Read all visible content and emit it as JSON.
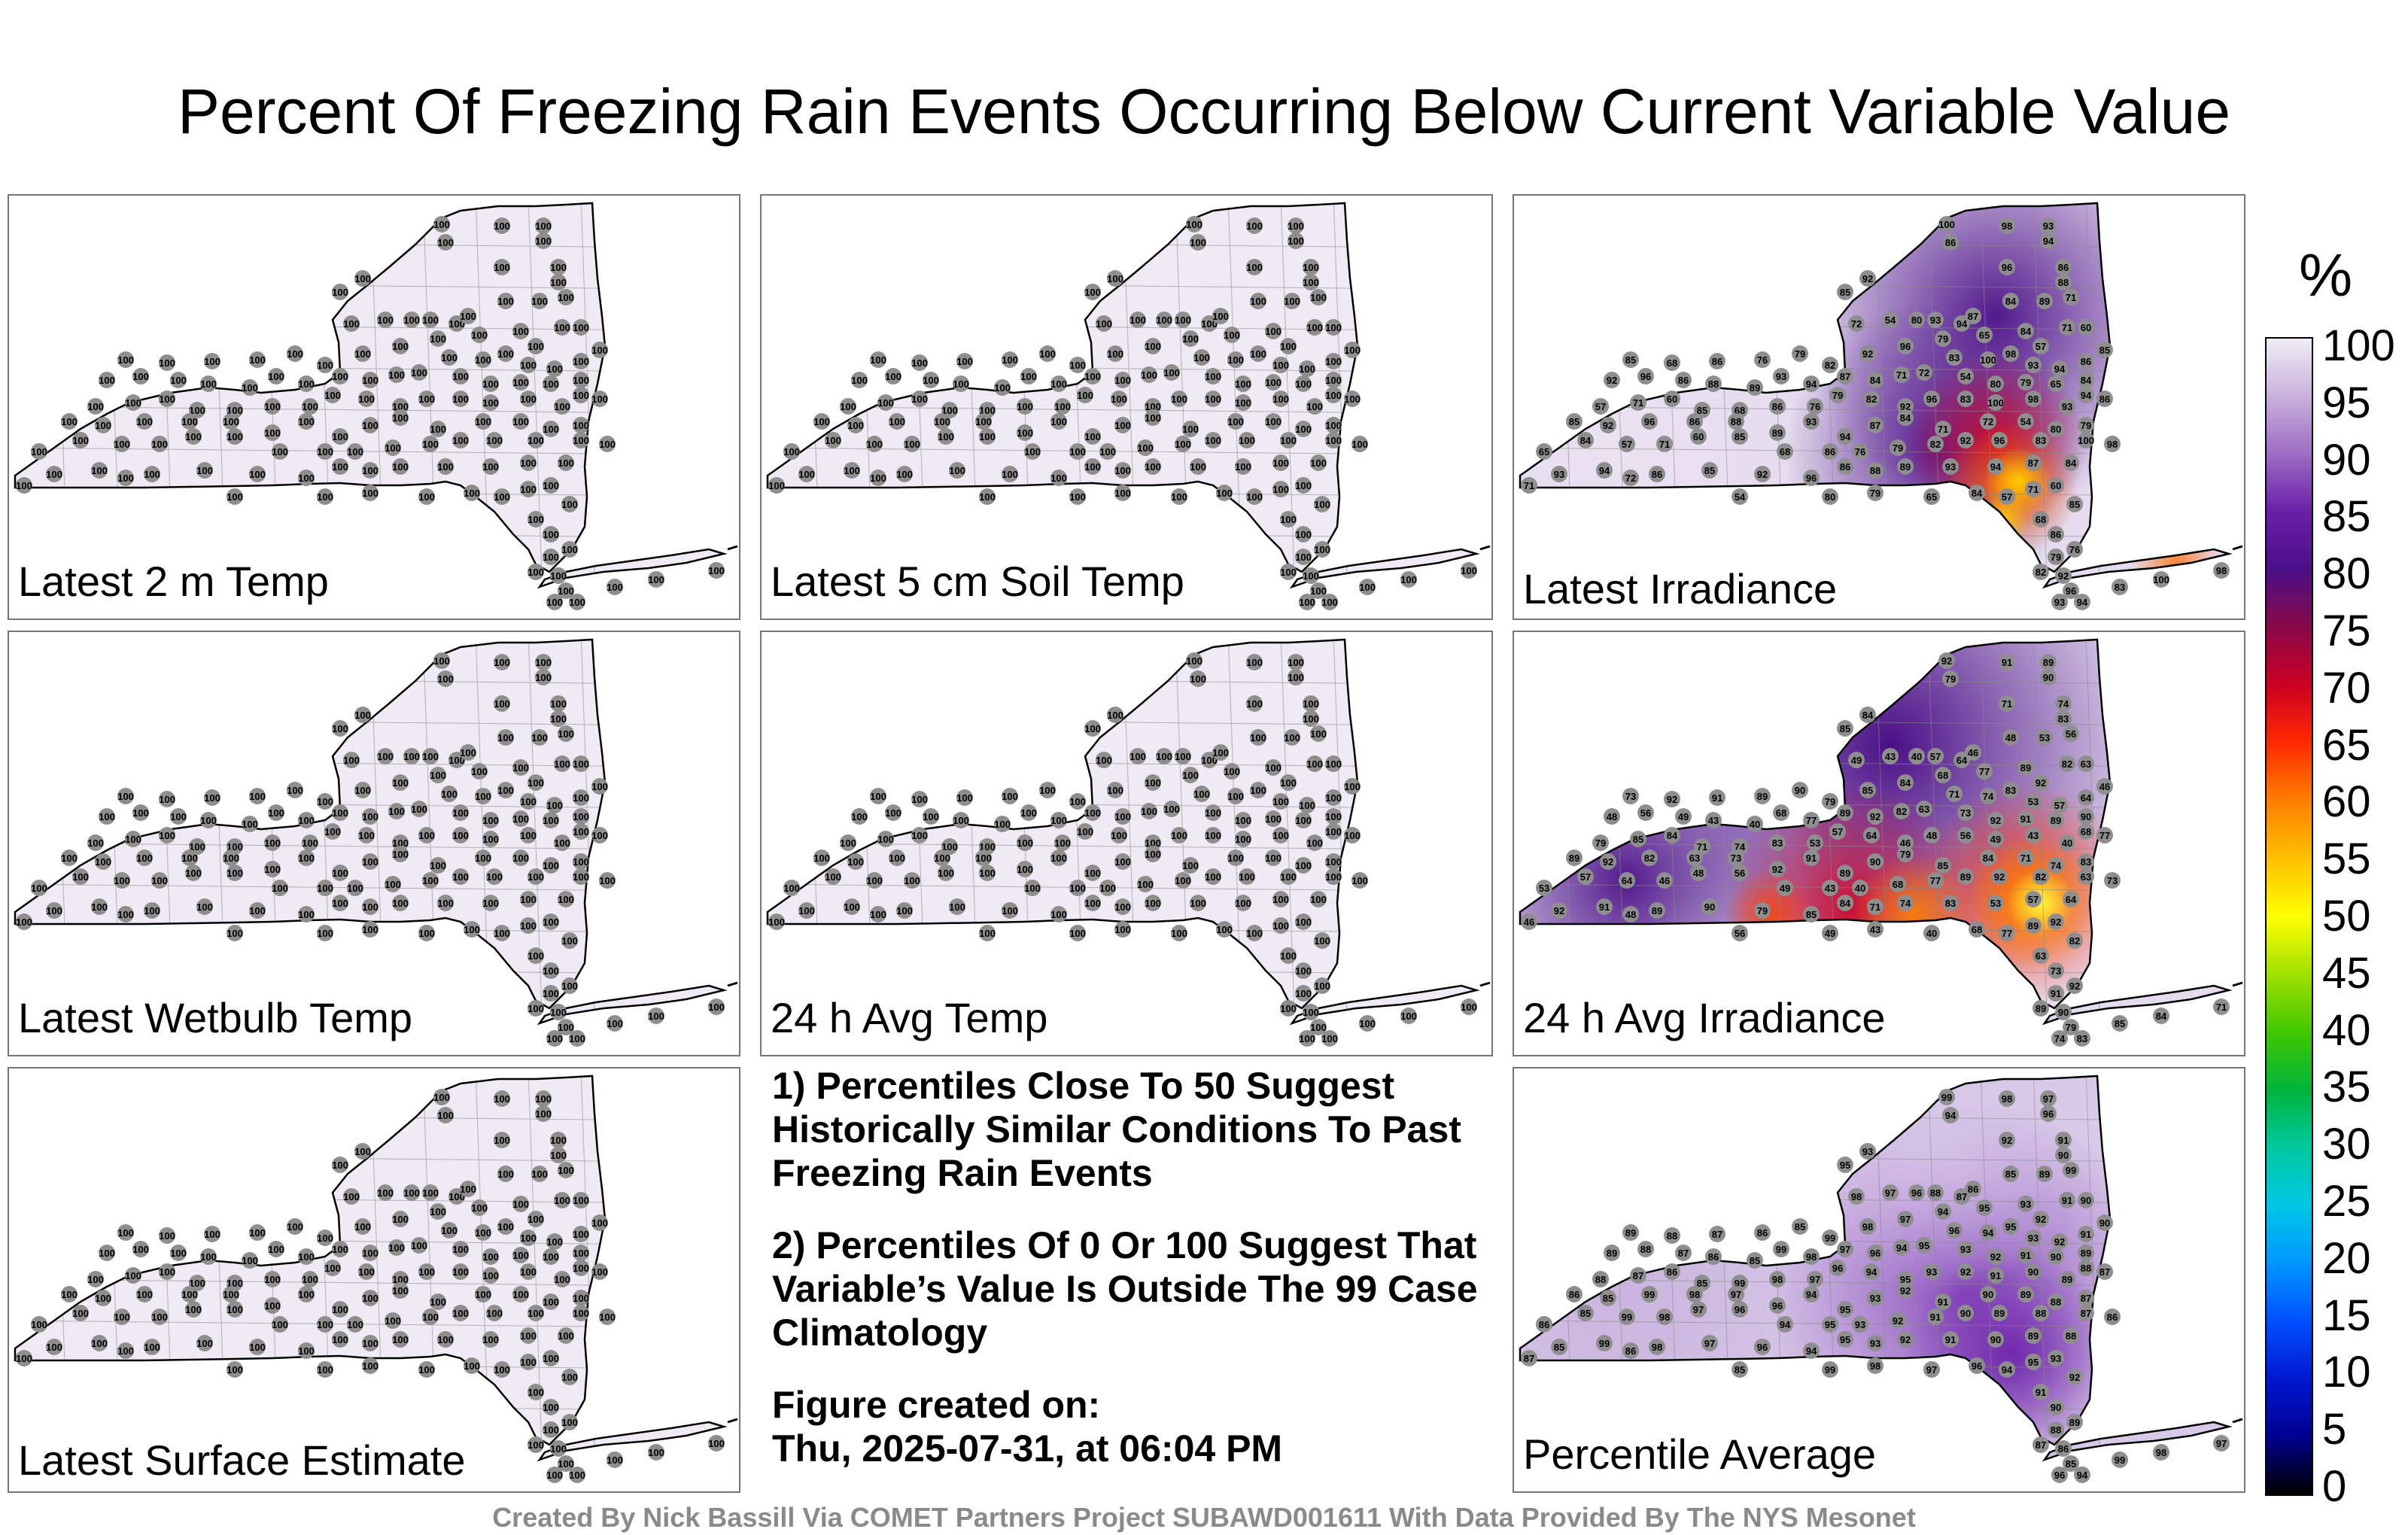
{
  "title": "Percent Of Freezing Rain Events Occurring Below Current Variable Value",
  "panels": [
    {
      "label": "Latest 2 m Temp",
      "fill": "uniform100",
      "station_values": [
        100
      ]
    },
    {
      "label": "Latest 5 cm Soil Temp",
      "fill": "uniform100",
      "station_values": [
        100
      ]
    },
    {
      "label": "Latest Irradiance",
      "fill": "irradiance",
      "station_values": [
        100,
        98,
        93,
        94,
        86,
        85,
        92,
        96,
        86,
        88,
        89,
        93,
        94,
        87,
        84,
        71,
        72,
        54,
        80,
        79,
        65,
        84,
        57,
        71,
        60,
        85,
        68,
        86,
        76,
        79,
        82,
        92,
        96,
        83
      ]
    },
    {
      "label": "Latest Wetbulb Temp",
      "fill": "uniform100",
      "station_values": [
        100
      ]
    },
    {
      "label": "24 h Avg Temp",
      "fill": "uniform100",
      "station_values": [
        100
      ]
    },
    {
      "label": "24 h Avg Irradiance",
      "fill": "irradiance24",
      "station_values": [
        92,
        91,
        89,
        90,
        79,
        85,
        84,
        71,
        74,
        83,
        53,
        57,
        64,
        46,
        48,
        56,
        49,
        43,
        40,
        68,
        77,
        89,
        92,
        82,
        63,
        73
      ]
    },
    {
      "label": "Latest Surface Estimate",
      "fill": "uniform100",
      "station_values": [
        100
      ]
    },
    {
      "label": "Percentile Average",
      "fill": "average",
      "station_values": [
        99,
        98,
        97,
        96,
        94,
        95,
        93,
        92,
        91,
        90,
        89,
        88,
        87,
        86,
        85
      ]
    }
  ],
  "notes": [
    "1) Percentiles Close To 50 Suggest Historically Similar Conditions To Past Freezing Rain Events",
    "2) Percentiles Of 0 Or 100 Suggest That Variable’s Value Is Outside The 99 Case Climatology",
    "Figure created on:",
    "Thu, 2025-07-31, at 06:04 PM"
  ],
  "colorbar": {
    "unit": "%",
    "ticks": [
      "100",
      "95",
      "90",
      "85",
      "80",
      "75",
      "70",
      "65",
      "60",
      "55",
      "50",
      "45",
      "40",
      "35",
      "30",
      "25",
      "20",
      "15",
      "10",
      "5",
      "0"
    ],
    "colors": [
      "#f0ecf5",
      "#c9b1dc",
      "#9d6cc4",
      "#6a1fa8",
      "#4a0f87",
      "#8a0848",
      "#cc0022",
      "#ff2a00",
      "#ff7f00",
      "#ffc000",
      "#ffff00",
      "#a0e000",
      "#40c800",
      "#00b43c",
      "#00c8a0",
      "#00c8e6",
      "#0096ff",
      "#0050ff",
      "#0018d0",
      "#000090",
      "#000000"
    ]
  },
  "footer": "Created By Nick Bassill Via COMET Partners Project SUBAWD001611 With Data Provided By The NYS Mesonet"
}
